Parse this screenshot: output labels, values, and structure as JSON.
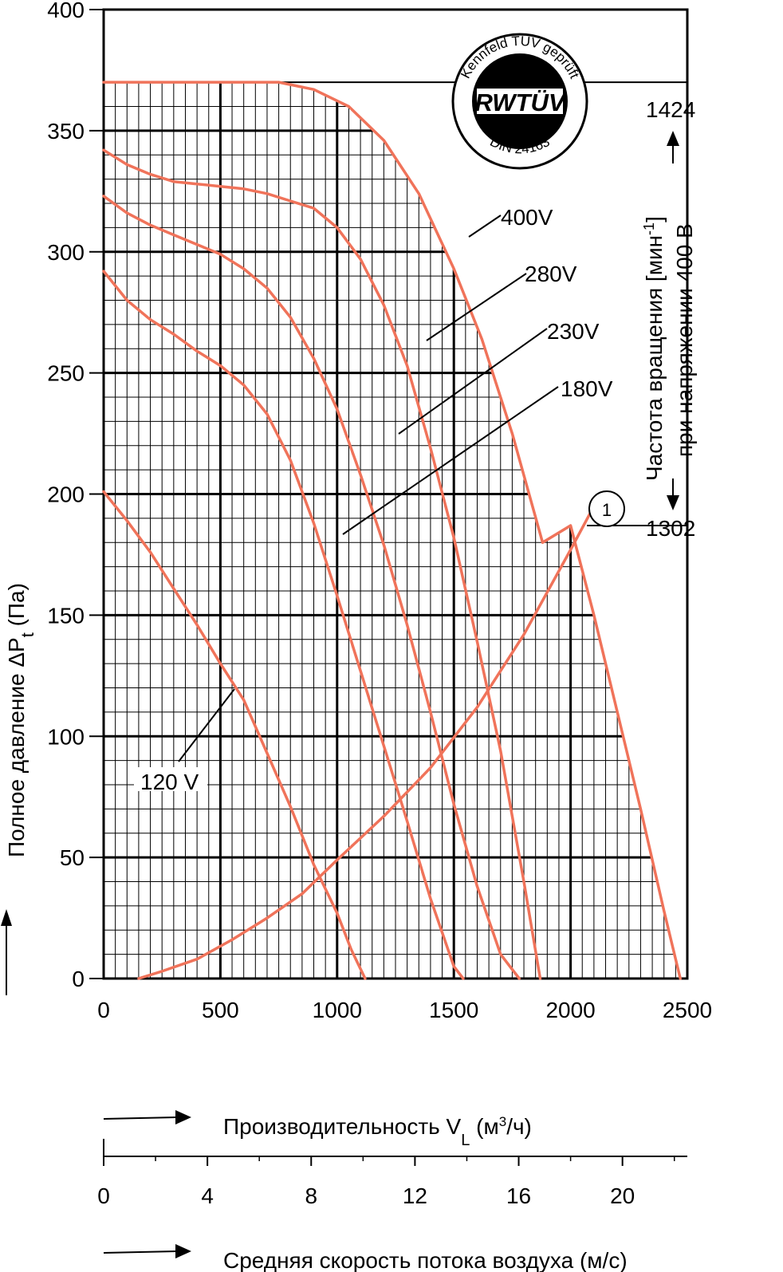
{
  "chart_data": {
    "type": "line",
    "x_axis": {
      "label_main": "Производительность V",
      "label_sub": "L",
      "label_unit_pre": " (м",
      "label_unit_sup": "3",
      "label_unit_post": "/ч)",
      "range": [
        0,
        2500
      ],
      "ticks": [
        "0",
        "500",
        "1000",
        "1500",
        "2000",
        "2500"
      ]
    },
    "x_axis2": {
      "label": "Средняя скорость потока воздуха (м/с)",
      "range": [
        0,
        22.5
      ],
      "ticks": [
        "0",
        "4",
        "8",
        "12",
        "16",
        "20"
      ]
    },
    "y_axis": {
      "label_main": "Полное давление ΔP",
      "label_sub": "t",
      "label_unit": " (Па)",
      "range": [
        0,
        400
      ],
      "ticks": [
        "0",
        "50",
        "100",
        "150",
        "200",
        "250",
        "300",
        "350",
        "400"
      ]
    },
    "right_axis": {
      "label_line1_pre": "Частота вращения [мин",
      "label_line1_sup": "-1",
      "label_line1_post": "]",
      "label_line2": "при напряжении 400 В",
      "top_value": "1424",
      "bottom_value": "1302"
    },
    "grid": true,
    "badge": {
      "ring_text": "Kennfeld TÜV geprüft",
      "brand": "RWTÜV",
      "standard": "DIN 24163"
    },
    "operating_point": "1",
    "series": [
      {
        "name": "400V",
        "color": "#f0735a",
        "x": [
          0,
          200,
          400,
          600,
          750,
          900,
          1050,
          1200,
          1350,
          1500,
          1620,
          1750,
          1880,
          2000,
          2100,
          2200,
          2300,
          2400,
          2470
        ],
        "y": [
          370,
          370,
          370,
          370,
          370,
          367,
          360,
          346,
          324,
          293,
          264,
          225,
          180,
          187,
          150,
          110,
          70,
          28,
          0
        ]
      },
      {
        "name": "280V",
        "color": "#f0735a",
        "x": [
          0,
          100,
          200,
          300,
          400,
          500,
          600,
          700,
          800,
          900,
          1000,
          1100,
          1200,
          1300,
          1400,
          1500,
          1600,
          1700,
          1800,
          1870
        ],
        "y": [
          342,
          336,
          332,
          329,
          328,
          327,
          326,
          324,
          321,
          318,
          310,
          297,
          278,
          253,
          219,
          182,
          139,
          94,
          40,
          0
        ]
      },
      {
        "name": "230V",
        "color": "#f0735a",
        "x": [
          0,
          100,
          200,
          300,
          400,
          500,
          600,
          700,
          800,
          900,
          1000,
          1100,
          1200,
          1300,
          1400,
          1500,
          1600,
          1700,
          1780
        ],
        "y": [
          323,
          316,
          311,
          307,
          303,
          299,
          293,
          285,
          273,
          256,
          235,
          208,
          179,
          146,
          110,
          72,
          38,
          10,
          0
        ]
      },
      {
        "name": "180V",
        "color": "#f0735a",
        "x": [
          0,
          100,
          200,
          300,
          400,
          500,
          600,
          700,
          800,
          900,
          1000,
          1100,
          1200,
          1300,
          1400,
          1500,
          1540
        ],
        "y": [
          292,
          280,
          272,
          266,
          259,
          253,
          245,
          233,
          214,
          188,
          158,
          127,
          96,
          65,
          33,
          5,
          0
        ]
      },
      {
        "name": "120 V",
        "color": "#f0735a",
        "x": [
          0,
          100,
          200,
          300,
          400,
          500,
          600,
          700,
          800,
          900,
          1000,
          1060,
          1120
        ],
        "y": [
          201,
          189,
          176,
          161,
          146,
          130,
          115,
          93,
          71,
          47,
          27,
          12,
          0
        ]
      },
      {
        "name": "",
        "color": "#f0735a",
        "x": [
          150,
          250,
          400,
          550,
          700,
          850,
          1000,
          1200,
          1400,
          1600,
          1800,
          2000,
          2100
        ],
        "y": [
          0,
          3,
          8,
          16,
          25,
          35,
          49,
          67,
          87,
          112,
          142,
          177,
          195
        ]
      }
    ]
  }
}
